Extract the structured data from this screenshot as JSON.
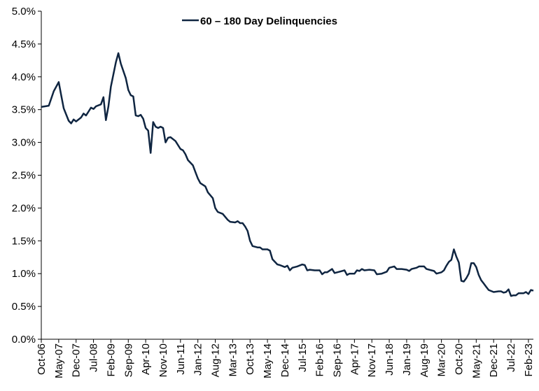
{
  "chart_data": {
    "type": "line",
    "title": "",
    "xlabel": "",
    "ylabel": "",
    "ylim": [
      0,
      5
    ],
    "y_ticks": [
      "0.0%",
      "0.5%",
      "1.0%",
      "1.5%",
      "2.0%",
      "2.5%",
      "3.0%",
      "3.5%",
      "4.0%",
      "4.5%",
      "5.0%"
    ],
    "x_ticks": [
      "Oct-06",
      "May-07",
      "Dec-07",
      "Jul-08",
      "Feb-09",
      "Sep-09",
      "Apr-10",
      "Nov-10",
      "Jun-11",
      "Jan-12",
      "Aug-12",
      "Mar-13",
      "Oct-13",
      "May-14",
      "Dec-14",
      "Jul-15",
      "Feb-16",
      "Sep-16",
      "Apr-17",
      "Nov-17",
      "Jun-18",
      "Jan-19",
      "Aug-19",
      "Mar-20",
      "Oct-20",
      "May-21",
      "Dec-21",
      "Jul-22",
      "Feb-23"
    ],
    "x_start": "Oct-06",
    "x_end": "Apr-23",
    "grid": false,
    "legend": {
      "position": "top-center"
    },
    "color": "#0f2541",
    "series": [
      {
        "name": "60 – 180 Day Delinquencies",
        "points": [
          [
            "Oct-06",
            3.54
          ],
          [
            "Jan-07",
            3.56
          ],
          [
            "Mar-07",
            3.78
          ],
          [
            "May-07",
            3.92
          ],
          [
            "Jun-07",
            3.72
          ],
          [
            "Jul-07",
            3.52
          ],
          [
            "Sep-07",
            3.33
          ],
          [
            "Oct-07",
            3.29
          ],
          [
            "Nov-07",
            3.35
          ],
          [
            "Dec-07",
            3.32
          ],
          [
            "Feb-08",
            3.38
          ],
          [
            "Mar-08",
            3.44
          ],
          [
            "Apr-08",
            3.41
          ],
          [
            "May-08",
            3.47
          ],
          [
            "Jun-08",
            3.53
          ],
          [
            "Jul-08",
            3.51
          ],
          [
            "Aug-08",
            3.55
          ],
          [
            "Oct-08",
            3.58
          ],
          [
            "Nov-08",
            3.69
          ],
          [
            "Dec-08",
            3.34
          ],
          [
            "Jan-09",
            3.55
          ],
          [
            "Feb-09",
            3.85
          ],
          [
            "Apr-09",
            4.22
          ],
          [
            "May-09",
            4.36
          ],
          [
            "Jun-09",
            4.2
          ],
          [
            "Aug-09",
            3.98
          ],
          [
            "Sep-09",
            3.8
          ],
          [
            "Oct-09",
            3.72
          ],
          [
            "Nov-09",
            3.7
          ],
          [
            "Dec-09",
            3.41
          ],
          [
            "Jan-10",
            3.4
          ],
          [
            "Feb-10",
            3.42
          ],
          [
            "Mar-10",
            3.36
          ],
          [
            "Apr-10",
            3.22
          ],
          [
            "May-10",
            3.18
          ],
          [
            "Jun-10",
            2.84
          ],
          [
            "Jul-10",
            3.31
          ],
          [
            "Aug-10",
            3.24
          ],
          [
            "Sep-10",
            3.22
          ],
          [
            "Oct-10",
            3.24
          ],
          [
            "Nov-10",
            3.22
          ],
          [
            "Dec-10",
            3.0
          ],
          [
            "Jan-11",
            3.07
          ],
          [
            "Feb-11",
            3.08
          ],
          [
            "Apr-11",
            3.02
          ],
          [
            "Jun-11",
            2.9
          ],
          [
            "Jul-11",
            2.88
          ],
          [
            "Aug-11",
            2.82
          ],
          [
            "Sep-11",
            2.73
          ],
          [
            "Nov-11",
            2.65
          ],
          [
            "Dec-11",
            2.55
          ],
          [
            "Jan-12",
            2.45
          ],
          [
            "Feb-12",
            2.38
          ],
          [
            "Apr-12",
            2.33
          ],
          [
            "May-12",
            2.24
          ],
          [
            "Jul-12",
            2.15
          ],
          [
            "Aug-12",
            2.0
          ],
          [
            "Sep-12",
            1.94
          ],
          [
            "Nov-12",
            1.91
          ],
          [
            "Jan-13",
            1.82
          ],
          [
            "Feb-13",
            1.79
          ],
          [
            "Apr-13",
            1.78
          ],
          [
            "May-13",
            1.8
          ],
          [
            "Jun-13",
            1.77
          ],
          [
            "Jul-13",
            1.77
          ],
          [
            "Aug-13",
            1.72
          ],
          [
            "Sep-13",
            1.65
          ],
          [
            "Oct-13",
            1.5
          ],
          [
            "Nov-13",
            1.42
          ],
          [
            "Jan-14",
            1.4
          ],
          [
            "Feb-14",
            1.4
          ],
          [
            "Mar-14",
            1.37
          ],
          [
            "May-14",
            1.37
          ],
          [
            "Jun-14",
            1.35
          ],
          [
            "Jul-14",
            1.22
          ],
          [
            "Sep-14",
            1.14
          ],
          [
            "Oct-14",
            1.13
          ],
          [
            "Dec-14",
            1.1
          ],
          [
            "Jan-15",
            1.12
          ],
          [
            "Feb-15",
            1.05
          ],
          [
            "Mar-15",
            1.09
          ],
          [
            "May-15",
            1.11
          ],
          [
            "Jul-15",
            1.14
          ],
          [
            "Aug-15",
            1.13
          ],
          [
            "Sep-15",
            1.05
          ],
          [
            "Oct-15",
            1.06
          ],
          [
            "Dec-15",
            1.05
          ],
          [
            "Feb-16",
            1.05
          ],
          [
            "Mar-16",
            0.99
          ],
          [
            "Apr-16",
            1.02
          ],
          [
            "May-16",
            1.02
          ],
          [
            "Jul-16",
            1.07
          ],
          [
            "Aug-16",
            1.01
          ],
          [
            "Oct-16",
            1.03
          ],
          [
            "Dec-16",
            1.05
          ],
          [
            "Jan-17",
            0.98
          ],
          [
            "Feb-17",
            1.0
          ],
          [
            "Apr-17",
            1.0
          ],
          [
            "May-17",
            1.05
          ],
          [
            "Jun-17",
            1.04
          ],
          [
            "Jul-17",
            1.07
          ],
          [
            "Aug-17",
            1.05
          ],
          [
            "Oct-17",
            1.06
          ],
          [
            "Dec-17",
            1.05
          ],
          [
            "Jan-18",
            0.99
          ],
          [
            "Mar-18",
            1.0
          ],
          [
            "May-18",
            1.03
          ],
          [
            "Jun-18",
            1.09
          ],
          [
            "Aug-18",
            1.11
          ],
          [
            "Sep-18",
            1.07
          ],
          [
            "Nov-18",
            1.07
          ],
          [
            "Jan-19",
            1.06
          ],
          [
            "Feb-19",
            1.04
          ],
          [
            "Mar-19",
            1.07
          ],
          [
            "May-19",
            1.09
          ],
          [
            "Jun-19",
            1.11
          ],
          [
            "Aug-19",
            1.11
          ],
          [
            "Sep-19",
            1.07
          ],
          [
            "Nov-19",
            1.05
          ],
          [
            "Dec-19",
            1.04
          ],
          [
            "Jan-20",
            1.0
          ],
          [
            "Mar-20",
            1.02
          ],
          [
            "Apr-20",
            1.05
          ],
          [
            "May-20",
            1.12
          ],
          [
            "Jun-20",
            1.18
          ],
          [
            "Jul-20",
            1.21
          ],
          [
            "Aug-20",
            1.37
          ],
          [
            "Sep-20",
            1.26
          ],
          [
            "Oct-20",
            1.17
          ],
          [
            "Nov-20",
            0.89
          ],
          [
            "Dec-20",
            0.88
          ],
          [
            "Jan-21",
            0.93
          ],
          [
            "Feb-21",
            1.0
          ],
          [
            "Mar-21",
            1.16
          ],
          [
            "Apr-21",
            1.16
          ],
          [
            "May-21",
            1.1
          ],
          [
            "Jun-21",
            0.98
          ],
          [
            "Jul-21",
            0.9
          ],
          [
            "Aug-21",
            0.85
          ],
          [
            "Sep-21",
            0.8
          ],
          [
            "Oct-21",
            0.75
          ],
          [
            "Dec-21",
            0.72
          ],
          [
            "Feb-22",
            0.73
          ],
          [
            "Mar-22",
            0.73
          ],
          [
            "Apr-22",
            0.71
          ],
          [
            "May-22",
            0.72
          ],
          [
            "Jun-22",
            0.76
          ],
          [
            "Jul-22",
            0.66
          ],
          [
            "Aug-22",
            0.67
          ],
          [
            "Sep-22",
            0.67
          ],
          [
            "Oct-22",
            0.7
          ],
          [
            "Dec-22",
            0.7
          ],
          [
            "Jan-23",
            0.72
          ],
          [
            "Feb-23",
            0.69
          ],
          [
            "Mar-23",
            0.75
          ],
          [
            "Apr-23",
            0.74
          ]
        ]
      }
    ]
  }
}
